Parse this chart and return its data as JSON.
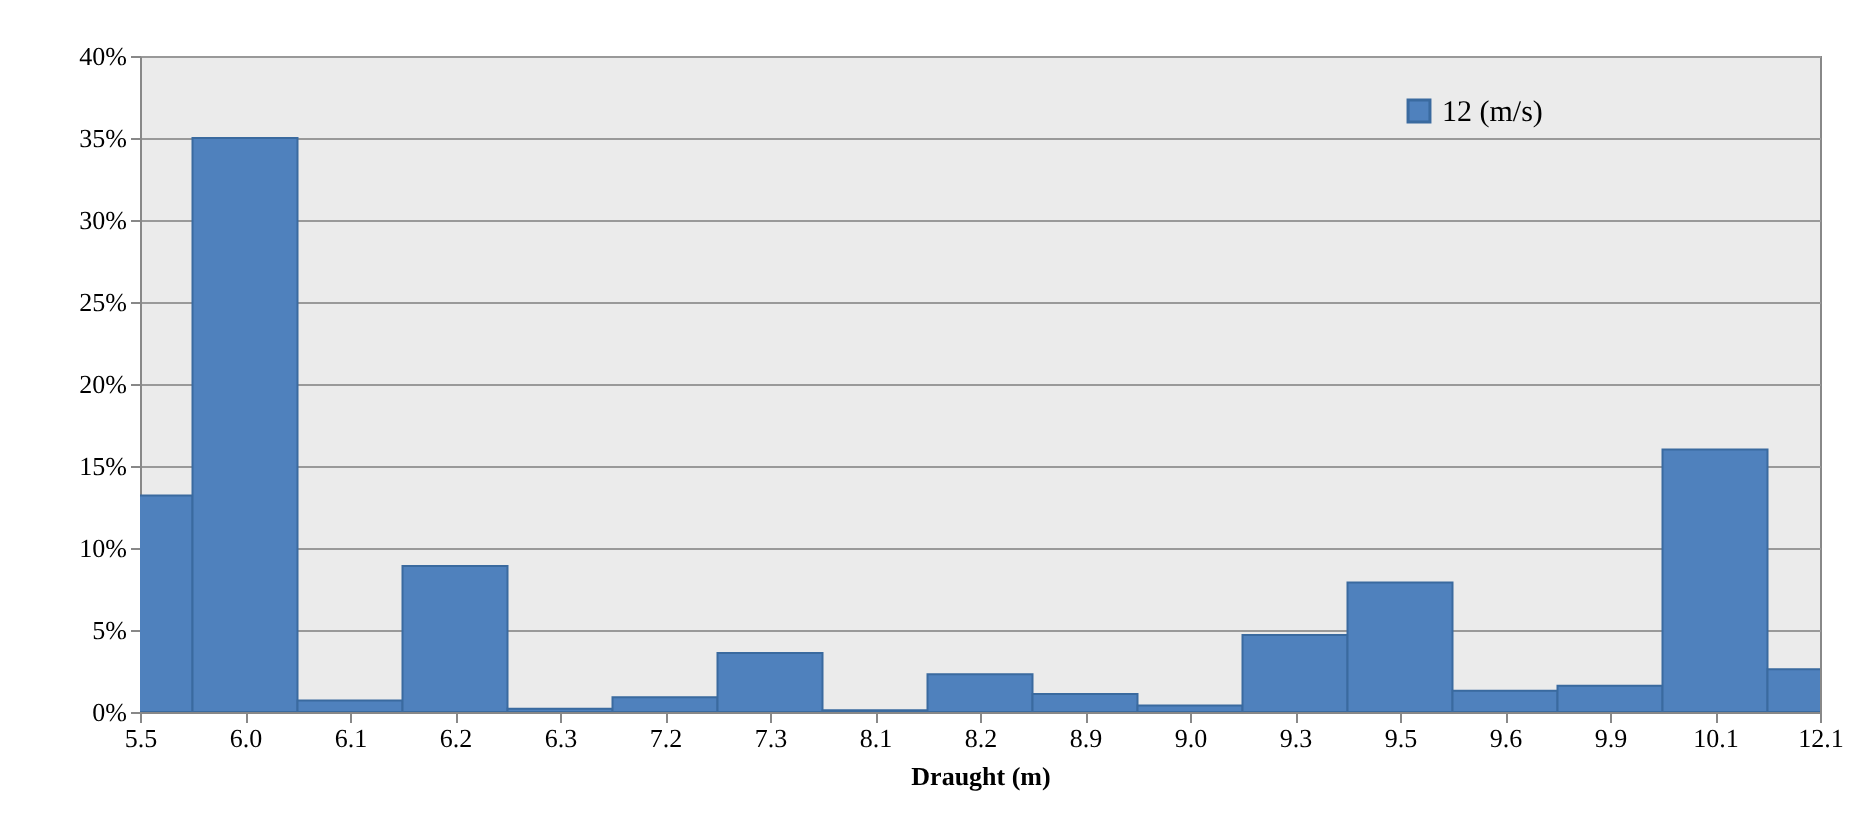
{
  "chart_data": {
    "type": "bar",
    "xlabel": "Draught (m)",
    "categories": [
      "5.5",
      "6.0",
      "6.1",
      "6.2",
      "6.3",
      "7.2",
      "7.3",
      "8.1",
      "8.2",
      "8.9",
      "9.0",
      "9.3",
      "9.5",
      "9.6",
      "9.9",
      "10.1",
      "12.1"
    ],
    "series": [
      {
        "name": "12 (m/s)",
        "color": "#4f81bd",
        "values": [
          13.2,
          35,
          0.7,
          8.9,
          0.2,
          0.9,
          3.6,
          0.1,
          2.3,
          1.1,
          0.4,
          4.7,
          7.9,
          1.3,
          1.6,
          16,
          2.6
        ]
      }
    ],
    "ylim": [
      0,
      40
    ],
    "yticks": [
      {
        "value": 0,
        "label": "0%"
      },
      {
        "value": 5,
        "label": "5%"
      },
      {
        "value": 10,
        "label": "10%"
      },
      {
        "value": 15,
        "label": "15%"
      },
      {
        "value": 20,
        "label": "20%"
      },
      {
        "value": 25,
        "label": "25%"
      },
      {
        "value": 30,
        "label": "30%"
      },
      {
        "value": 35,
        "label": "35%"
      },
      {
        "value": 40,
        "label": "40%"
      }
    ],
    "grid": "y",
    "legend": "top right"
  }
}
